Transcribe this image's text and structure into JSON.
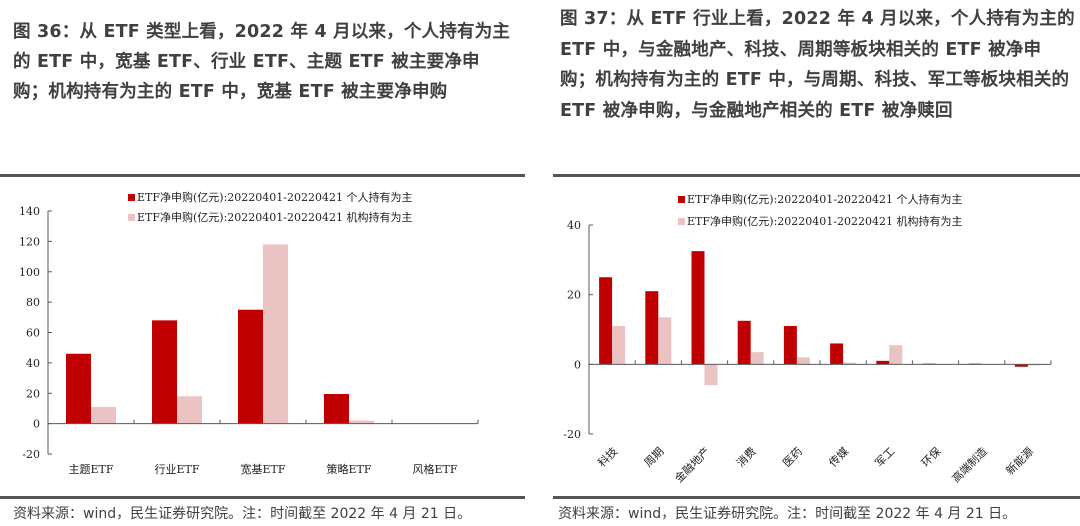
{
  "figures": [
    {
      "id": "fig36",
      "title": "图 36：从 ETF 类型上看，2022 年 4 月以来，个人持有为主的 ETF 中，宽基 ETF、行业 ETF、主题 ETF 被主要净申购；机构持有为主的 ETF 中，宽基 ETF 被主要净申购",
      "source": "资料来源：wind，民生证券研究院。注：时间截至 2022 年 4 月 21 日。"
    },
    {
      "id": "fig37",
      "title": "图 37：从 ETF 行业上看，2022 年 4 月以来，个人持有为主的 ETF 中，与金融地产、科技、周期等板块相关的 ETF 被净申购；机构持有为主的 ETF 中，与周期、科技、军工等板块相关的 ETF 被净申购，与金融地产相关的 ETF 被净赎回",
      "source": "资料来源：wind，民生证券研究院。注：时间截至 2022 年 4 月 21 日。"
    }
  ],
  "colors": {
    "individual": "#c00000",
    "institutional": "#ebc3c3",
    "axis": "#595959",
    "title_text": "#404040",
    "rule": "#555555"
  },
  "chart_data": [
    {
      "type": "bar",
      "title": "",
      "xlabel": "",
      "ylabel": "",
      "ylim": [
        -20,
        140
      ],
      "yticks": [
        -20,
        0,
        20,
        40,
        60,
        80,
        100,
        120,
        140
      ],
      "grid": false,
      "legend_position": "top",
      "categories": [
        "主题ETF",
        "行业ETF",
        "宽基ETF",
        "策略ETF",
        "风格ETF"
      ],
      "series": [
        {
          "name": "ETF净申购(亿元):20220401-20220421 个人持有为主",
          "color": "#c00000",
          "values": [
            46,
            68,
            75,
            19.5,
            0
          ]
        },
        {
          "name": "ETF净申购(亿元):20220401-20220421 机构持有为主",
          "color": "#ebc3c3",
          "values": [
            11,
            18,
            118,
            2,
            0
          ]
        }
      ]
    },
    {
      "type": "bar",
      "title": "",
      "xlabel": "",
      "ylabel": "",
      "ylim": [
        -20,
        40
      ],
      "yticks": [
        -20,
        0,
        20,
        40
      ],
      "grid": false,
      "legend_position": "top",
      "categories": [
        "科技",
        "周期",
        "金融地产",
        "消费",
        "医药",
        "传媒",
        "军工",
        "环保",
        "高端制造",
        "新能源"
      ],
      "series": [
        {
          "name": "ETF净申购(亿元):20220401-20220421 个人持有为主",
          "color": "#c00000",
          "values": [
            25,
            21,
            32.5,
            12.5,
            11,
            6,
            1,
            0.2,
            0.2,
            -0.7
          ]
        },
        {
          "name": "ETF净申购(亿元):20220401-20220421 机构持有为主",
          "color": "#ebc3c3",
          "values": [
            11,
            13.5,
            -6,
            3.5,
            2,
            0.5,
            5.5,
            0,
            0,
            -0.3
          ]
        }
      ]
    }
  ]
}
